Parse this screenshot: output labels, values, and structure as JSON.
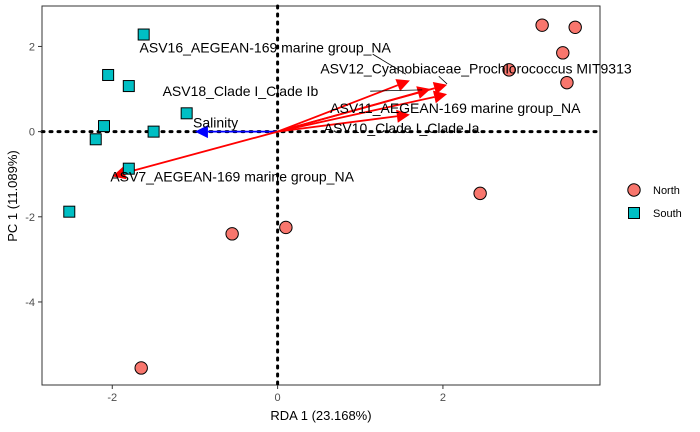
{
  "chart_data": {
    "type": "scatter",
    "xlabel": "RDA 1 (23.168%)",
    "ylabel": "PC 1 (11.089%)",
    "xlim": [
      -2.85,
      3.9
    ],
    "ylim": [
      -5.95,
      2.95
    ],
    "x_ticks": [
      -2,
      0,
      2
    ],
    "y_ticks": [
      2,
      0,
      -2,
      -4
    ],
    "grid": false,
    "legend_position": "right",
    "reference_lines": {
      "x": 0,
      "y": 0,
      "style": "dotted"
    },
    "series": [
      {
        "name": "North",
        "marker": "circle",
        "color": "#F8766D",
        "points": [
          [
            3.2,
            2.5
          ],
          [
            3.6,
            2.45
          ],
          [
            3.45,
            1.85
          ],
          [
            2.8,
            1.45
          ],
          [
            3.5,
            1.15
          ],
          [
            2.45,
            -1.45
          ],
          [
            0.1,
            -2.25
          ],
          [
            -0.55,
            -2.4
          ],
          [
            -1.65,
            -5.55
          ]
        ]
      },
      {
        "name": "South",
        "marker": "square",
        "color": "#00BFC4",
        "points": [
          [
            -1.62,
            2.28
          ],
          [
            -2.05,
            1.33
          ],
          [
            -1.8,
            1.07
          ],
          [
            -1.1,
            0.43
          ],
          [
            -2.1,
            0.13
          ],
          [
            -1.5,
            0.0
          ],
          [
            -2.2,
            -0.18
          ],
          [
            -1.8,
            -0.87
          ],
          [
            -2.52,
            -1.88
          ]
        ]
      }
    ],
    "vectors": [
      {
        "label": "Salinity",
        "x": -1.0,
        "y": 0.0,
        "color": "#0000FF",
        "label_x": -0.75,
        "label_y": 0.22
      },
      {
        "label": "ASV16_AEGEAN-169 marine group_NA",
        "x": 1.6,
        "y": 1.2,
        "color": "#FF0000",
        "label_x": -0.15,
        "label_y": 1.98
      },
      {
        "label": "ASV12_Cyanobiaceae_Prochlorococcus MIT9313",
        "x": 2.05,
        "y": 1.1,
        "color": "#FF0000",
        "label_x": 2.4,
        "label_y": 1.48
      },
      {
        "label": "ASV18_Clade I_Clade Ib",
        "x": 1.85,
        "y": 1.0,
        "color": "#FF0000",
        "label_x": -0.45,
        "label_y": 0.95
      },
      {
        "label": "ASV11_AEGEAN-169 marine group_NA",
        "x": 2.05,
        "y": 0.88,
        "color": "#FF0000",
        "label_x": 2.15,
        "label_y": 0.55
      },
      {
        "label": "ASV10_Clade I_Clade Ia",
        "x": 1.6,
        "y": 0.4,
        "color": "#FF0000",
        "label_x": 1.5,
        "label_y": 0.08
      },
      {
        "label": "ASV7_AEGEAN-169 marine group_NA",
        "x": -2.0,
        "y": -1.05,
        "color": "#FF0000",
        "label_x": -0.55,
        "label_y": -1.05
      }
    ]
  }
}
